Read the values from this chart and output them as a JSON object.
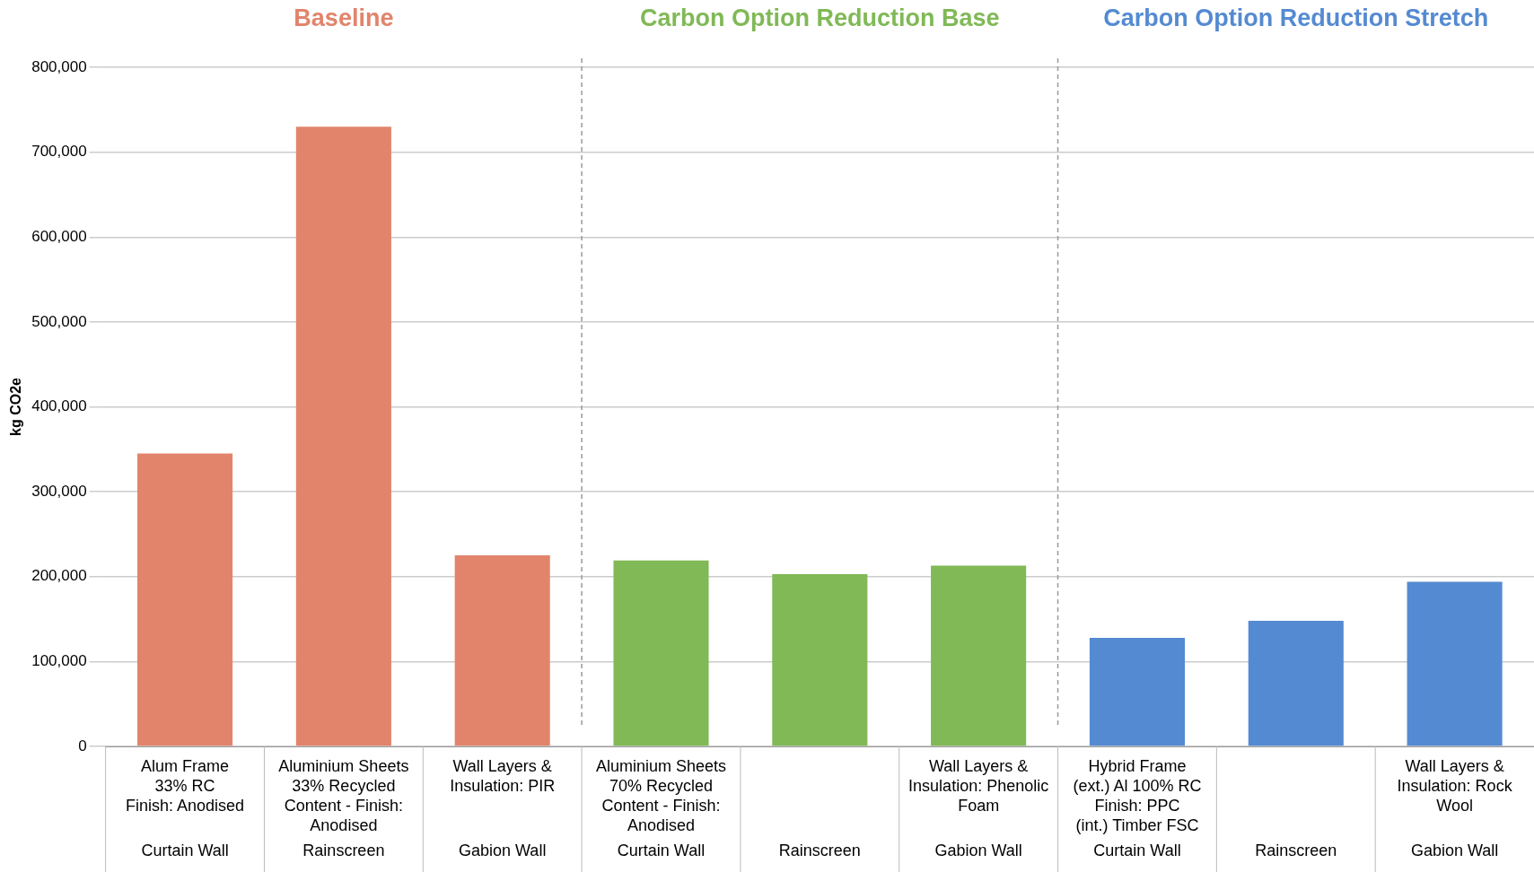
{
  "chart_data": {
    "type": "bar",
    "ylabel": "kg CO2e",
    "grid": "y",
    "legend": false,
    "categories": [
      "Alum Frame\n33% RC\nFinish: Anodised\nCurtain Wall",
      "Aluminium Sheets\n33% Recycled\nContent - Finish:\nAnodised\nRainscreen",
      "Wall Layers &\nInsulation: PIR\nGabion Wall",
      "Aluminium Sheets\n70% Recycled\nContent - Finish:\nAnodised\nCurtain Wall",
      "Rainscreen",
      "Wall Layers &\nInsulation: Phenolic\nFoam\nGabion Wall",
      "Hybrid Frame\n(ext.) Al 100% RC\nFinish: PPC\n(int.) Timber FSC\nCurtain Wall",
      "Rainscreen",
      "Wall Layers &\nInsulation: Rock\nWool\nGabion Wall"
    ],
    "series": [
      {
        "name": "Baseline",
        "color": "#e2846c",
        "values": [
          345000,
          730000,
          225000,
          null,
          null,
          null,
          null,
          null,
          null
        ]
      },
      {
        "name": "Carbon Option Reduction Base",
        "color": "#80b956",
        "values": [
          null,
          null,
          null,
          219000,
          203000,
          213000,
          null,
          null,
          null
        ]
      },
      {
        "name": "Carbon Option Reduction Stretch",
        "color": "#548ad2",
        "values": [
          null,
          null,
          null,
          null,
          null,
          null,
          128000,
          148000,
          194000
        ]
      }
    ],
    "ylim": [
      0,
      800000
    ],
    "yticks": [
      0,
      {
        "value": 100000,
        "label": "100,000"
      },
      {
        "value": 200000,
        "label": "200,000"
      },
      {
        "value": 300000,
        "label": "300,000"
      },
      {
        "value": 400000,
        "label": "400,000"
      },
      {
        "value": 500000,
        "label": "500,000"
      },
      {
        "value": 600000,
        "label": "600,000"
      },
      {
        "value": 700000,
        "label": "700,000"
      },
      {
        "value": 800000,
        "label": "800,000"
      }
    ]
  }
}
